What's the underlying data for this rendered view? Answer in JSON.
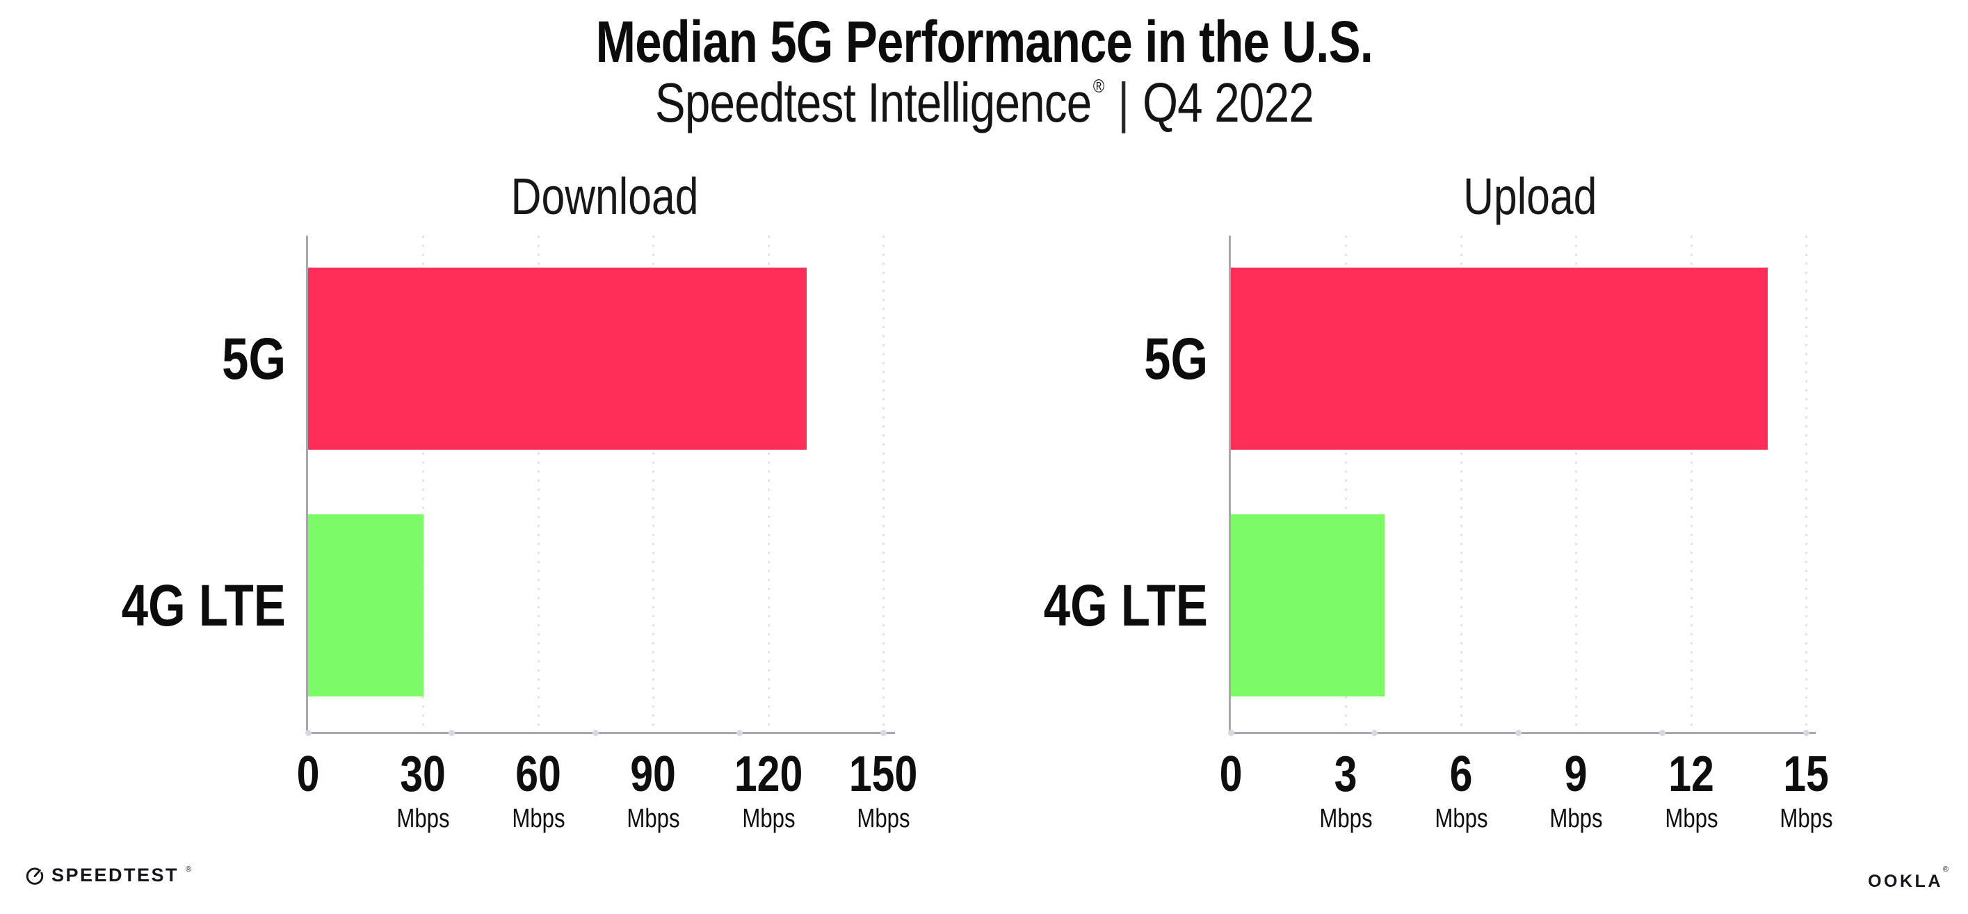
{
  "title": "Median 5G Performance in the U.S.",
  "subtitle": {
    "brand": "Speedtest Intelligence",
    "registered": "®",
    "divider": "|",
    "period": "Q4 2022"
  },
  "footer": {
    "speedtest": "SPEEDTEST",
    "speedtest_mark": "®",
    "speedtest_icon": "gauge-icon",
    "ookla": "OOKLA",
    "ookla_mark": "®"
  },
  "colors": {
    "bar_5g_pink": "#FF2E58",
    "bar_4g_green": "#7DFB66",
    "axis_gray": "#A7A7AE",
    "grid_dot": "#E0E0EA",
    "axis_end_dot": "#D7D7E1",
    "text": "#111111"
  },
  "chart_data": [
    {
      "type": "bar",
      "orientation": "horizontal",
      "title": "Download",
      "categories": [
        "5G",
        "4G LTE"
      ],
      "values": [
        130,
        30
      ],
      "unit": "Mbps",
      "xlim": [
        0,
        150
      ],
      "xticks": [
        0,
        30,
        60,
        90,
        120,
        150
      ],
      "series_colors": [
        "#FF2E58",
        "#7DFB66"
      ],
      "grid": "dotted-vertical",
      "legend": "none"
    },
    {
      "type": "bar",
      "orientation": "horizontal",
      "title": "Upload",
      "categories": [
        "5G",
        "4G LTE"
      ],
      "values": [
        14,
        4
      ],
      "unit": "Mbps",
      "xlim": [
        0,
        15
      ],
      "xticks": [
        0,
        3,
        6,
        9,
        12,
        15
      ],
      "series_colors": [
        "#FF2E58",
        "#7DFB66"
      ],
      "grid": "dotted-vertical",
      "legend": "none"
    }
  ]
}
